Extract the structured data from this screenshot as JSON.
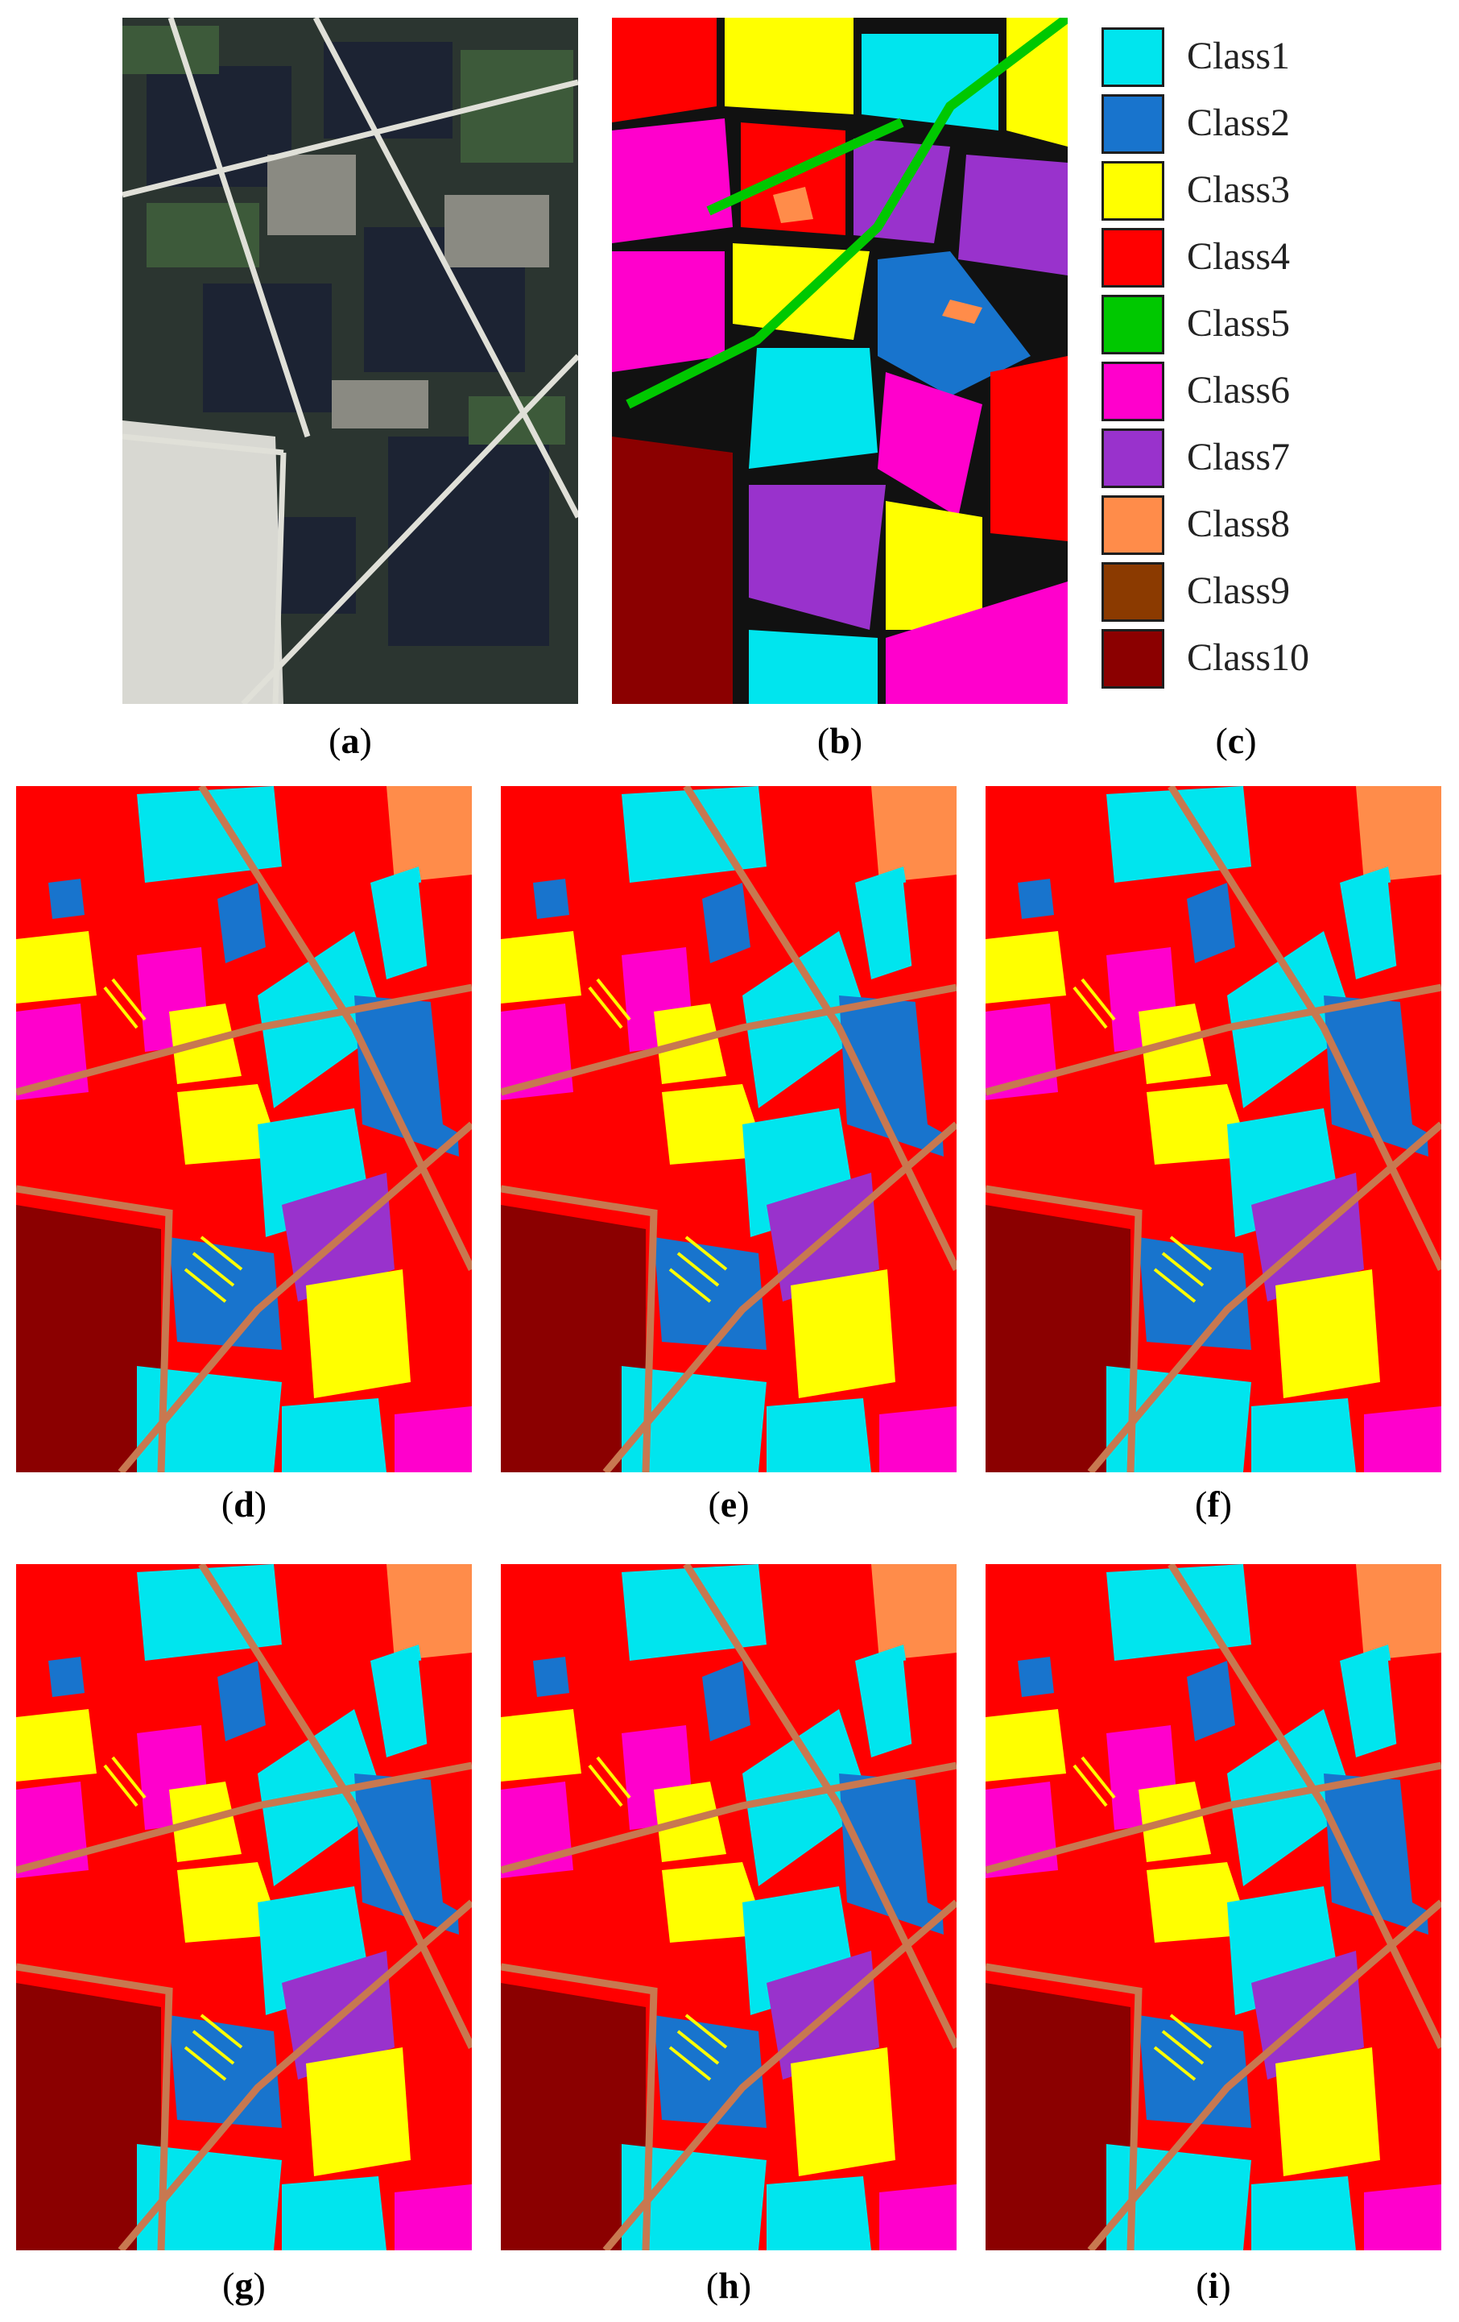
{
  "figure": {
    "panels": [
      {
        "id": "a",
        "label": "a",
        "kind": "satellite"
      },
      {
        "id": "b",
        "label": "b",
        "kind": "ground-truth"
      },
      {
        "id": "c",
        "label": "c",
        "kind": "legend"
      },
      {
        "id": "d",
        "label": "d",
        "kind": "classification"
      },
      {
        "id": "e",
        "label": "e",
        "kind": "classification"
      },
      {
        "id": "f",
        "label": "f",
        "kind": "classification"
      },
      {
        "id": "g",
        "label": "g",
        "kind": "classification"
      },
      {
        "id": "h",
        "label": "h",
        "kind": "classification"
      },
      {
        "id": "i",
        "label": "i",
        "kind": "classification"
      }
    ],
    "legend": [
      {
        "label": "Class1",
        "color": "#00e5ee"
      },
      {
        "label": "Class2",
        "color": "#1874cd"
      },
      {
        "label": "Class3",
        "color": "#ffff00"
      },
      {
        "label": "Class4",
        "color": "#ff0000"
      },
      {
        "label": "Class5",
        "color": "#00c800"
      },
      {
        "label": "Class6",
        "color": "#ff00cc"
      },
      {
        "label": "Class7",
        "color": "#9932cc"
      },
      {
        "label": "Class8",
        "color": "#ff8c4a"
      },
      {
        "label": "Class9",
        "color": "#8b3a00"
      },
      {
        "label": "Class10",
        "color": "#8b0000"
      }
    ]
  }
}
